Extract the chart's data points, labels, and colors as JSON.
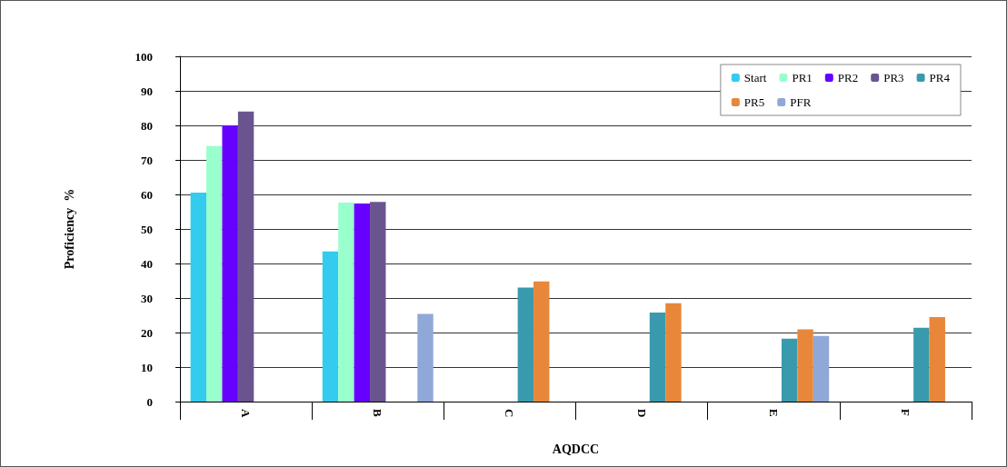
{
  "chart_data": {
    "type": "bar",
    "xlabel": "AQDCC",
    "ylabel": "Proficiency  %",
    "categories": [
      "A",
      "B",
      "C",
      "D",
      "E",
      "F"
    ],
    "series": [
      {
        "name": "Start",
        "color": "#33ccee",
        "values": [
          60.5,
          43.5,
          null,
          null,
          null,
          null
        ]
      },
      {
        "name": "PR1",
        "color": "#99ffcc",
        "values": [
          74,
          57.6,
          null,
          null,
          null,
          null
        ]
      },
      {
        "name": "PR2",
        "color": "#6600ff",
        "values": [
          80,
          57.4,
          null,
          null,
          null,
          null
        ]
      },
      {
        "name": "PR3",
        "color": "#6a5490",
        "values": [
          84,
          57.8,
          null,
          null,
          null,
          null
        ]
      },
      {
        "name": "PR4",
        "color": "#3a9aad",
        "values": [
          null,
          null,
          33,
          25.8,
          18.2,
          21.4
        ]
      },
      {
        "name": "PR5",
        "color": "#e8873a",
        "values": [
          null,
          null,
          34.8,
          28.5,
          20.9,
          24.5
        ]
      },
      {
        "name": "PFR",
        "color": "#8fa8d8",
        "values": [
          null,
          25.4,
          null,
          null,
          19,
          null
        ]
      }
    ],
    "ylim": [
      0,
      100
    ],
    "yticks": [
      0,
      10,
      20,
      30,
      40,
      50,
      60,
      70,
      80,
      90,
      100
    ],
    "grid": "y",
    "legend": "top right"
  }
}
